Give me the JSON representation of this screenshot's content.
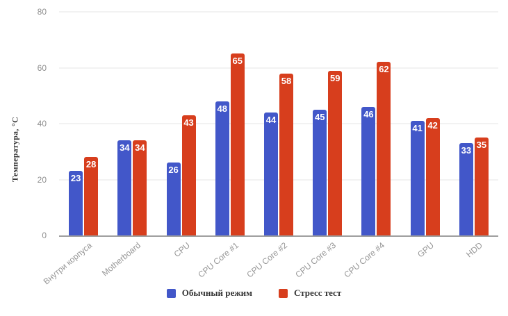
{
  "chart_data": {
    "type": "bar",
    "title": "",
    "xlabel": "",
    "ylabel": "Температура, °C",
    "ylim": [
      0,
      80
    ],
    "yticks": [
      0,
      20,
      40,
      60,
      80
    ],
    "grid": true,
    "legend_position": "bottom",
    "value_labels": "inside-top",
    "categories": [
      "Внутри корпуса",
      "Motherboard",
      "CPU",
      "CPU Core #1",
      "CPU Core #2",
      "CPU Core #3",
      "CPU Core #4",
      "GPU",
      "HDD"
    ],
    "series": [
      {
        "name": "Обычный режим",
        "color": "#4257c9",
        "values": [
          23,
          34,
          26,
          48,
          44,
          45,
          46,
          41,
          33
        ]
      },
      {
        "name": "Стресс тест",
        "color": "#d73e1d",
        "values": [
          28,
          34,
          43,
          65,
          58,
          59,
          62,
          42,
          35
        ]
      }
    ]
  },
  "colors": {
    "background": "#ffffff",
    "gridline": "#e6e6e6",
    "baseline": "#9e9e9e",
    "tick_label": "#8f8f8f",
    "category_label": "#969696",
    "value_label": "#ffffff",
    "legend_text": "#333333"
  }
}
